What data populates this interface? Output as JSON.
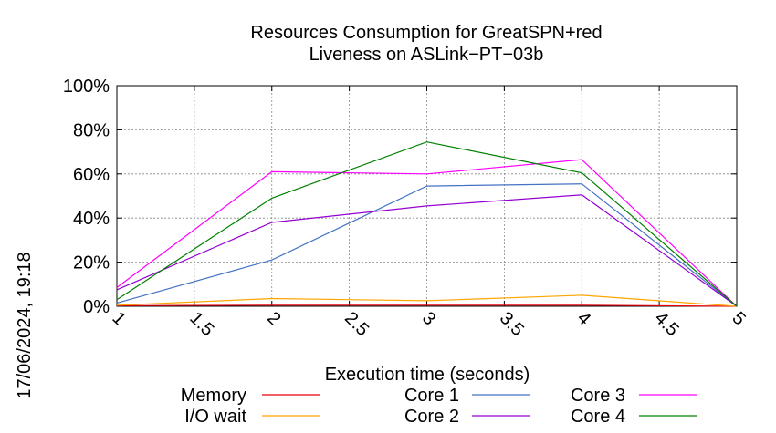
{
  "chart_data": {
    "type": "line",
    "title_line1": "Resources Consumption for GreatSPN+red",
    "title_line2": "Liveness on ASLink−PT−03b",
    "xlabel": "Execution time (seconds)",
    "side_label": "17/06/2024, 19:18",
    "xlim": [
      1,
      5
    ],
    "ylim": [
      0,
      100
    ],
    "x_ticks": [
      "1",
      "1.5",
      "2",
      "2.5",
      "3",
      "3.5",
      "4",
      "4.5",
      "5"
    ],
    "y_ticks": [
      "0%",
      "20%",
      "40%",
      "60%",
      "80%",
      "100%"
    ],
    "grid": true,
    "legend_position": "bottom",
    "x": [
      1,
      2,
      3,
      4,
      5
    ],
    "series": [
      {
        "name": "Memory",
        "color": "#e8000b",
        "values": [
          0.3,
          0.5,
          0.5,
          0.5,
          0
        ]
      },
      {
        "name": "I/O wait",
        "color": "#ffa500",
        "values": [
          0.5,
          3.5,
          2.5,
          5.0,
          0
        ]
      },
      {
        "name": "Core 1",
        "color": "#4472c4",
        "values": [
          1.5,
          21,
          54.5,
          55.5,
          0
        ]
      },
      {
        "name": "Core 2",
        "color": "#9400d3",
        "values": [
          7.5,
          38,
          45.5,
          50.5,
          0
        ]
      },
      {
        "name": "Core 3",
        "color": "#ff00ff",
        "values": [
          8.5,
          61,
          60,
          66.5,
          0
        ]
      },
      {
        "name": "Core 4",
        "color": "#008000",
        "values": [
          3,
          49,
          74.5,
          60.5,
          0
        ]
      }
    ]
  }
}
